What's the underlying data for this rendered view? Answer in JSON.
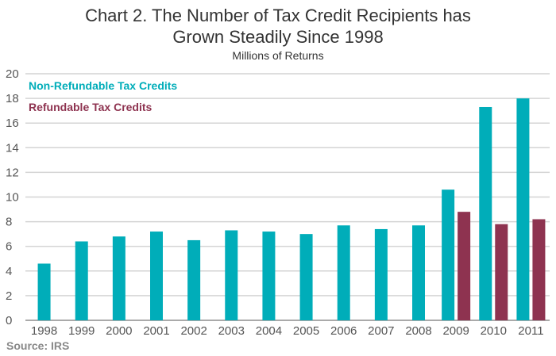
{
  "chart_data": {
    "type": "bar",
    "title": "Chart 2. The Number of Tax Credit Recipients has Grown Steadily Since 1998",
    "title_lines": [
      "Chart 2. The Number of Tax Credit Recipients has",
      "Grown Steadily Since 1998"
    ],
    "subtitle": "Millions of Returns",
    "xlabel": "",
    "ylabel": "",
    "ylim": [
      0,
      20
    ],
    "yticks": [
      0,
      2,
      4,
      6,
      8,
      10,
      12,
      14,
      16,
      18,
      20
    ],
    "grid": true,
    "legend_placement": "top-left",
    "categories": [
      "1998",
      "1999",
      "2000",
      "2001",
      "2002",
      "2003",
      "2004",
      "2005",
      "2006",
      "2007",
      "2008",
      "2009",
      "2010",
      "2011"
    ],
    "series": [
      {
        "name": "Non-Refundable Tax Credits",
        "color": "#00adb9",
        "values": [
          4.6,
          6.4,
          6.8,
          7.2,
          6.5,
          7.3,
          7.2,
          7.0,
          7.7,
          7.4,
          7.7,
          10.6,
          17.3,
          18.0
        ]
      },
      {
        "name": "Refundable Tax Credits",
        "color": "#8e3350",
        "values": [
          null,
          null,
          null,
          null,
          null,
          null,
          null,
          null,
          null,
          null,
          null,
          8.8,
          7.8,
          8.2
        ]
      }
    ],
    "source": "Source: IRS"
  }
}
